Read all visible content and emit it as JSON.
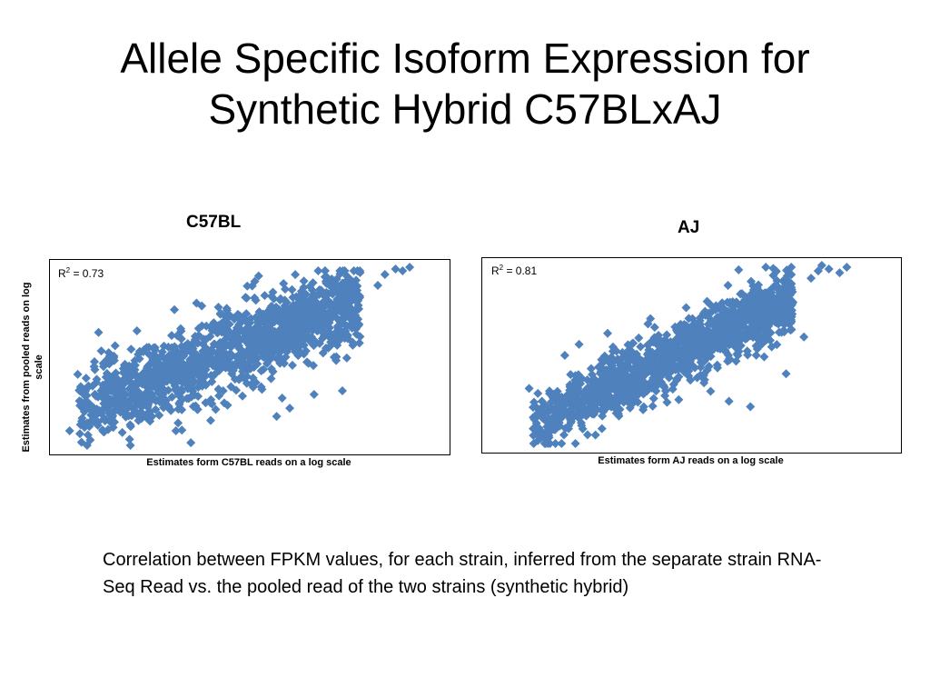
{
  "slide": {
    "title": "Allele Specific Isoform Expression for Synthetic Hybrid C57BLxAJ",
    "caption": "Correlation between FPKM values, for each strain, inferred from the separate strain RNA-Seq Read vs. the pooled read of the two strains (synthetic hybrid)"
  },
  "colors": {
    "marker": "#4F81BD",
    "axis": "#000000"
  },
  "chart_data": [
    {
      "type": "scatter",
      "title": "C57BL",
      "xlabel": "Estimates form C57BL reads on a log scale",
      "ylabel": "Estimates from pooled reads on log scale",
      "annotation": {
        "r2_prefix": "R",
        "r2_exp": "2",
        "r2_value": " = 0.73",
        "r2": 0.73
      },
      "marker": "diamond",
      "grid": false,
      "legend": "none",
      "xlim": [
        0,
        1
      ],
      "ylim": [
        0,
        1
      ],
      "cloud": {
        "slope": 0.75,
        "intercept": 0.18,
        "spread": 0.11,
        "x_range": [
          0.05,
          0.85
        ],
        "count": 1400
      },
      "points": [
        {
          "x": 0.03,
          "y": 0.1
        },
        {
          "x": 0.06,
          "y": 0.32
        },
        {
          "x": 0.1,
          "y": 0.48
        },
        {
          "x": 0.22,
          "y": 0.65
        },
        {
          "x": 0.45,
          "y": 0.78
        },
        {
          "x": 0.49,
          "y": 0.58
        },
        {
          "x": 0.6,
          "y": 0.84
        },
        {
          "x": 0.7,
          "y": 0.8
        },
        {
          "x": 0.72,
          "y": 0.3
        },
        {
          "x": 0.8,
          "y": 0.32
        },
        {
          "x": 0.9,
          "y": 0.9
        },
        {
          "x": 0.92,
          "y": 0.96
        },
        {
          "x": 0.95,
          "y": 0.99
        },
        {
          "x": 0.97,
          "y": 0.98
        },
        {
          "x": 0.99,
          "y": 1.0
        },
        {
          "x": 0.85,
          "y": 0.97
        },
        {
          "x": 0.82,
          "y": 0.88
        },
        {
          "x": 0.63,
          "y": 0.28
        },
        {
          "x": 0.33,
          "y": 0.1
        }
      ]
    },
    {
      "type": "scatter",
      "title": "AJ",
      "xlabel": "Estimates form AJ reads on a log scale",
      "ylabel": "",
      "annotation": {
        "r2_prefix": "R",
        "r2_exp": "2",
        "r2_value": " = 0.81",
        "r2": 0.81
      },
      "marker": "diamond",
      "grid": false,
      "legend": "none",
      "xlim": [
        0,
        1
      ],
      "ylim": [
        0,
        1
      ],
      "cloud": {
        "slope": 0.95,
        "intercept": 0.05,
        "spread": 0.08,
        "x_range": [
          0.07,
          0.8
        ],
        "count": 1400
      },
      "points": [
        {
          "x": 0.06,
          "y": 0.32
        },
        {
          "x": 0.08,
          "y": 0.1
        },
        {
          "x": 0.16,
          "y": 0.5
        },
        {
          "x": 0.2,
          "y": 0.56
        },
        {
          "x": 0.28,
          "y": 0.62
        },
        {
          "x": 0.4,
          "y": 0.7
        },
        {
          "x": 0.5,
          "y": 0.76
        },
        {
          "x": 0.55,
          "y": 0.35
        },
        {
          "x": 0.62,
          "y": 0.25
        },
        {
          "x": 0.68,
          "y": 0.22
        },
        {
          "x": 0.78,
          "y": 0.4
        },
        {
          "x": 0.83,
          "y": 0.6
        },
        {
          "x": 0.85,
          "y": 0.92
        },
        {
          "x": 0.87,
          "y": 0.96
        },
        {
          "x": 0.88,
          "y": 0.99
        },
        {
          "x": 0.9,
          "y": 0.97
        },
        {
          "x": 0.93,
          "y": 0.95
        },
        {
          "x": 0.95,
          "y": 0.98
        }
      ]
    }
  ]
}
